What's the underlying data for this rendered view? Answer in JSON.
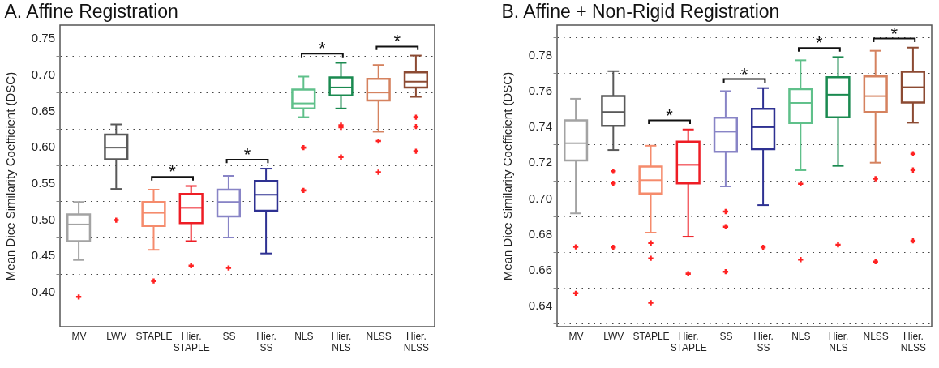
{
  "chart_data": [
    {
      "type": "box",
      "title": "A. Affine Registration",
      "ylabel": "Mean Dice Similarity Coefficient (DSC)",
      "categories": [
        "MV",
        "LWV",
        "STAPLE",
        "Hier.\nSTAPLE",
        "SS",
        "Hier.\nSS",
        "NLS",
        "Hier.\nNLS",
        "NLSS",
        "Hier.\nNLSS"
      ],
      "ylim": [
        0.352,
        0.768
      ],
      "yticks": [
        {
          "value": 0.375,
          "label": null
        },
        {
          "value": 0.4,
          "label": "0.40"
        },
        {
          "value": 0.425,
          "label": null
        },
        0.45,
        {
          "value": 0.475,
          "label": null
        },
        {
          "value": 0.5,
          "label": "0.50"
        },
        {
          "value": 0.525,
          "label": null
        },
        0.55,
        {
          "value": 0.575,
          "label": null
        },
        {
          "value": 0.6,
          "label": "0.60"
        },
        {
          "value": 0.625,
          "label": null
        },
        0.65,
        {
          "value": 0.675,
          "label": null
        },
        {
          "value": 0.7,
          "label": "0.70"
        },
        {
          "value": 0.725,
          "label": null
        },
        0.75
      ],
      "grid": "y",
      "series": [
        {
          "type": "box",
          "colors": [
            "#a3a3a3",
            "#595959",
            "#f58b6c",
            "#ee1d25",
            "#8884c6",
            "#2e3192",
            "#5fc08a",
            "#1a8a50",
            "#d5825f",
            "#8c4a32"
          ],
          "boxes": [
            {
              "low": 0.444,
              "q1": 0.47,
              "median": 0.493,
              "q3": 0.507,
              "high": 0.524
            },
            {
              "low": 0.542,
              "q1": 0.583,
              "median": 0.599,
              "q3": 0.617,
              "high": 0.631
            },
            {
              "low": 0.458,
              "q1": 0.491,
              "median": 0.509,
              "q3": 0.524,
              "high": 0.541
            },
            {
              "low": 0.47,
              "q1": 0.495,
              "median": 0.516,
              "q3": 0.535,
              "high": 0.546
            },
            {
              "low": 0.475,
              "q1": 0.504,
              "median": 0.524,
              "q3": 0.541,
              "high": 0.56
            },
            {
              "low": 0.453,
              "q1": 0.512,
              "median": 0.534,
              "q3": 0.553,
              "high": 0.57
            },
            {
              "low": 0.641,
              "q1": 0.653,
              "median": 0.66,
              "q3": 0.679,
              "high": 0.697
            },
            {
              "low": 0.653,
              "q1": 0.671,
              "median": 0.682,
              "q3": 0.696,
              "high": 0.716
            },
            {
              "low": 0.621,
              "q1": 0.664,
              "median": 0.675,
              "q3": 0.694,
              "high": 0.713
            },
            {
              "low": 0.669,
              "q1": 0.682,
              "median": 0.69,
              "q3": 0.703,
              "high": 0.726
            }
          ]
        },
        {
          "type": "scatter",
          "color": "#ff2222",
          "marker": "cross",
          "x": [
            "MV",
            "LWV",
            "STAPLE",
            "Hier.\nSTAPLE",
            "SS",
            "NLS",
            "NLS",
            "Hier.\nNLS",
            "Hier.\nNLS",
            "Hier.\nNLS",
            "NLSS",
            "NLSS",
            "Hier.\nNLSS",
            "Hier.\nNLSS",
            "Hier.\nNLSS"
          ],
          "values": [
            0.393,
            0.499,
            0.415,
            0.436,
            0.433,
            0.599,
            0.54,
            0.63,
            0.627,
            0.586,
            0.608,
            0.565,
            0.641,
            0.628,
            0.594
          ]
        }
      ],
      "annotations": [
        "*",
        "*",
        "*",
        "*"
      ]
    },
    {
      "type": "box",
      "title": "B. Affine + Non-Rigid Registration",
      "ylabel": "Mean Dice Similarity Coefficient (DSC)",
      "categories": [
        "MV",
        "LWV",
        "STAPLE",
        "Hier.\nSTAPLE",
        "SS",
        "Hier.\nSS",
        "NLS",
        "Hier.\nNLS",
        "NLSS",
        "Hier.\nNLSS"
      ],
      "ylim": [
        0.628,
        0.797
      ],
      "yticks": [
        {
          "value": 0.63,
          "label": null
        },
        0.64,
        {
          "value": 0.65,
          "label": null
        },
        0.66,
        {
          "value": 0.67,
          "label": null
        },
        0.68,
        {
          "value": 0.69,
          "label": null
        },
        {
          "value": 0.7,
          "label": "0.70"
        },
        {
          "value": 0.71,
          "label": null
        },
        0.72,
        {
          "value": 0.73,
          "label": null
        },
        0.74,
        {
          "value": 0.75,
          "label": null
        },
        0.76,
        {
          "value": 0.77,
          "label": null
        },
        0.78,
        {
          "value": 0.79,
          "label": null
        }
      ],
      "grid": "y",
      "series": [
        {
          "type": "box",
          "colors": [
            "#a3a3a3",
            "#595959",
            "#f58b6c",
            "#ee1d25",
            "#8884c6",
            "#2e3192",
            "#5fc08a",
            "#1a8a50",
            "#d5825f",
            "#8c4a32"
          ],
          "boxes": [
            {
              "low": 0.6915,
              "q1": 0.7211,
              "median": 0.7308,
              "q3": 0.7436,
              "high": 0.7557
            },
            {
              "low": 0.727,
              "q1": 0.7406,
              "median": 0.7483,
              "q3": 0.7572,
              "high": 0.7712
            },
            {
              "low": 0.6807,
              "q1": 0.7026,
              "median": 0.7101,
              "q3": 0.7177,
              "high": 0.7294
            },
            {
              "low": 0.6784,
              "q1": 0.7083,
              "median": 0.7187,
              "q3": 0.7317,
              "high": 0.7385
            },
            {
              "low": 0.7066,
              "q1": 0.726,
              "median": 0.7373,
              "q3": 0.7451,
              "high": 0.76
            },
            {
              "low": 0.6961,
              "q1": 0.7275,
              "median": 0.7398,
              "q3": 0.7501,
              "high": 0.7617
            },
            {
              "low": 0.7157,
              "q1": 0.7421,
              "median": 0.7534,
              "q3": 0.7611,
              "high": 0.7773
            },
            {
              "low": 0.7181,
              "q1": 0.7453,
              "median": 0.758,
              "q3": 0.7678,
              "high": 0.7791
            },
            {
              "low": 0.7199,
              "q1": 0.7483,
              "median": 0.7572,
              "q3": 0.7683,
              "high": 0.7826
            },
            {
              "low": 0.7423,
              "q1": 0.7536,
              "median": 0.7622,
              "q3": 0.7709,
              "high": 0.7844
            }
          ]
        },
        {
          "type": "scatter",
          "color": "#ff2222",
          "marker": "cross",
          "x": [
            "MV",
            "MV",
            "LWV",
            "LWV",
            "LWV",
            "STAPLE",
            "STAPLE",
            "STAPLE",
            "Hier.\nSTAPLE",
            "SS",
            "SS",
            "SS",
            "Hier.\nSS",
            "NLS",
            "NLS",
            "Hier.\nNLS",
            "NLSS",
            "NLSS",
            "Hier.\nNLSS",
            "Hier.\nNLSS",
            "Hier.\nNLSS"
          ],
          "values": [
            0.6727,
            0.6467,
            0.7151,
            0.7083,
            0.6724,
            0.6749,
            0.6663,
            0.6414,
            0.6577,
            0.6925,
            0.684,
            0.6588,
            0.6724,
            0.7081,
            0.6656,
            0.6739,
            0.7109,
            0.6644,
            0.7249,
            0.7158,
            0.6761
          ]
        }
      ],
      "annotations": [
        "*",
        "*",
        "*",
        "*"
      ]
    }
  ]
}
